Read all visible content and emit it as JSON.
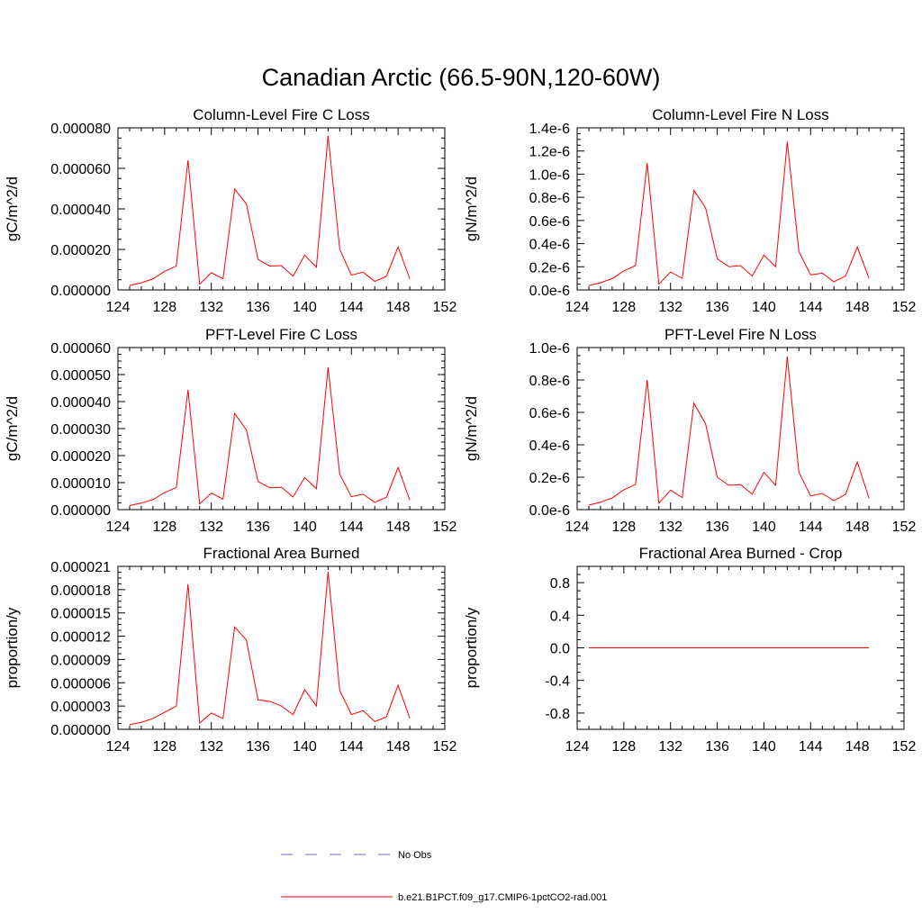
{
  "title": "Canadian Arctic (66.5-90N,120-60W)",
  "colors": {
    "series": "#ff0000",
    "obs": "#6a6acd",
    "axis": "#000000"
  },
  "legend": {
    "obs_label": "No Obs",
    "model_label": "b.e21.B1PCT.f09_g17.CMIP6-1pctCO2-rad.001"
  },
  "chart_data": [
    {
      "type": "line",
      "title": "Column-Level Fire C Loss",
      "ylabel": "gC/m^2/d",
      "xlim": [
        124,
        152
      ],
      "ylim": [
        0,
        8e-05
      ],
      "xticks": [
        "124",
        "128",
        "132",
        "136",
        "140",
        "144",
        "148",
        "152"
      ],
      "yticks": [
        "0.000000",
        "0.000020",
        "0.000040",
        "0.000060",
        "0.000080"
      ],
      "x": [
        125,
        126,
        127,
        128,
        129,
        130,
        131,
        132,
        133,
        134,
        135,
        136,
        137,
        138,
        139,
        140,
        141,
        142,
        143,
        144,
        145,
        146,
        147,
        148,
        149
      ],
      "values": [
        2.2e-06,
        3.5e-06,
        5.5e-06,
        9.2e-06,
        1.18e-05,
        6.4e-05,
        2.8e-06,
        8.5e-06,
        5.5e-06,
        4.98e-05,
        4.25e-05,
        1.51e-05,
        1.18e-05,
        1.2e-05,
        6.8e-06,
        1.72e-05,
        1.12e-05,
        7.62e-05,
        2.01e-05,
        7.3e-06,
        8.8e-06,
        4.2e-06,
        6.8e-06,
        2.12e-05,
        5.5e-06
      ]
    },
    {
      "type": "line",
      "title": "Column-Level Fire N Loss",
      "ylabel": "gN/m^2/d",
      "xlim": [
        124,
        152
      ],
      "ylim": [
        0,
        1.4e-06
      ],
      "xticks": [
        "124",
        "128",
        "132",
        "136",
        "140",
        "144",
        "148",
        "152"
      ],
      "yticks": [
        "0.0e-6",
        "0.2e-6",
        "0.4e-6",
        "0.6e-6",
        "0.8e-6",
        "1.0e-6",
        "1.2e-6",
        "1.4e-6"
      ],
      "x": [
        125,
        126,
        127,
        128,
        129,
        130,
        131,
        132,
        133,
        134,
        135,
        136,
        137,
        138,
        139,
        140,
        141,
        142,
        143,
        144,
        145,
        146,
        147,
        148,
        149
      ],
      "values": [
        3.8e-08,
        6.2e-08,
        9.8e-08,
        1.65e-07,
        2.1e-07,
        1.095e-06,
        5e-08,
        1.55e-07,
        1e-07,
        8.6e-07,
        7.1e-07,
        2.7e-07,
        2e-07,
        2.1e-07,
        1.2e-07,
        3e-07,
        2e-07,
        1.28e-06,
        3.3e-07,
        1.3e-07,
        1.45e-07,
        7e-08,
        1.2e-07,
        3.7e-07,
        1e-07
      ]
    },
    {
      "type": "line",
      "title": "PFT-Level Fire C Loss",
      "ylabel": "gC/m^2/d",
      "xlim": [
        124,
        152
      ],
      "ylim": [
        0,
        6e-05
      ],
      "xticks": [
        "124",
        "128",
        "132",
        "136",
        "140",
        "144",
        "148",
        "152"
      ],
      "yticks": [
        "0.000000",
        "0.000010",
        "0.000020",
        "0.000030",
        "0.000040",
        "0.000050",
        "0.000060"
      ],
      "x": [
        125,
        126,
        127,
        128,
        129,
        130,
        131,
        132,
        133,
        134,
        135,
        136,
        137,
        138,
        139,
        140,
        141,
        142,
        143,
        144,
        145,
        146,
        147,
        148,
        149
      ],
      "values": [
        1.5e-06,
        2.4e-06,
        3.7e-06,
        6.3e-06,
        8.2e-06,
        4.43e-05,
        2.1e-06,
        6.1e-06,
        3.9e-06,
        3.56e-05,
        2.95e-05,
        1.04e-05,
        8.1e-06,
        8.3e-06,
        4.7e-06,
        1.19e-05,
        7.7e-06,
        5.27e-05,
        1.31e-05,
        4.8e-06,
        5.7e-06,
        2.7e-06,
        4.6e-06,
        1.56e-05,
        3.5e-06
      ]
    },
    {
      "type": "line",
      "title": "PFT-Level Fire N Loss",
      "ylabel": "gN/m^2/d",
      "xlim": [
        124,
        152
      ],
      "ylim": [
        0,
        1e-06
      ],
      "xticks": [
        "124",
        "128",
        "132",
        "136",
        "140",
        "144",
        "148",
        "152"
      ],
      "yticks": [
        "0.0e-6",
        "0.2e-6",
        "0.4e-6",
        "0.6e-6",
        "0.8e-6",
        "1.0e-6"
      ],
      "x": [
        125,
        126,
        127,
        128,
        129,
        130,
        131,
        132,
        133,
        134,
        135,
        136,
        137,
        138,
        139,
        140,
        141,
        142,
        143,
        144,
        145,
        146,
        147,
        148,
        149
      ],
      "values": [
        2.8e-08,
        4.6e-08,
        7.2e-08,
        1.22e-07,
        1.55e-07,
        8e-07,
        4e-08,
        1.2e-07,
        7.5e-08,
        6.57e-07,
        5.3e-07,
        2e-07,
        1.5e-07,
        1.55e-07,
        9.5e-08,
        2.3e-07,
        1.5e-07,
        9.45e-07,
        2.3e-07,
        8.5e-08,
        1e-07,
        5.5e-08,
        9.5e-08,
        2.95e-07,
        7e-08
      ]
    },
    {
      "type": "line",
      "title": "Fractional Area Burned",
      "ylabel": "proportion/y",
      "xlim": [
        124,
        152
      ],
      "ylim": [
        0,
        2.1e-05
      ],
      "xticks": [
        "124",
        "128",
        "132",
        "136",
        "140",
        "144",
        "148",
        "152"
      ],
      "yticks": [
        "0.000000",
        "0.000003",
        "0.000006",
        "0.000009",
        "0.000012",
        "0.000015",
        "0.000018",
        "0.000021"
      ],
      "x": [
        125,
        126,
        127,
        128,
        129,
        130,
        131,
        132,
        133,
        134,
        135,
        136,
        137,
        138,
        139,
        140,
        141,
        142,
        143,
        144,
        145,
        146,
        147,
        148,
        149
      ],
      "values": [
        6e-07,
        9e-07,
        1.4e-06,
        2.2e-06,
        3e-06,
        1.87e-05,
        8e-07,
        2.1e-06,
        1.4e-06,
        1.32e-05,
        1.15e-05,
        3.8e-06,
        3.6e-06,
        3e-06,
        1.9e-06,
        5.1e-06,
        3e-06,
        2.03e-05,
        5e-06,
        1.9e-06,
        2.4e-06,
        1e-06,
        1.6e-06,
        5.7e-06,
        1.4e-06
      ]
    },
    {
      "type": "line",
      "title": "Fractional Area Burned - Crop",
      "ylabel": "proportion/y",
      "xlim": [
        124,
        152
      ],
      "ylim": [
        -1,
        1
      ],
      "xticks": [
        "124",
        "128",
        "132",
        "136",
        "140",
        "144",
        "148",
        "152"
      ],
      "yticks": [
        "-0.8",
        "-0.4",
        "0.0",
        "0.4",
        "0.8"
      ],
      "ytick_values": [
        -0.8,
        -0.4,
        0.0,
        0.4,
        0.8
      ],
      "x": [
        125,
        126,
        127,
        128,
        129,
        130,
        131,
        132,
        133,
        134,
        135,
        136,
        137,
        138,
        139,
        140,
        141,
        142,
        143,
        144,
        145,
        146,
        147,
        148,
        149
      ],
      "values": [
        0,
        0,
        0,
        0,
        0,
        0,
        0,
        0,
        0,
        0,
        0,
        0,
        0,
        0,
        0,
        0,
        0,
        0,
        0,
        0,
        0,
        0,
        0,
        0,
        0
      ]
    }
  ]
}
